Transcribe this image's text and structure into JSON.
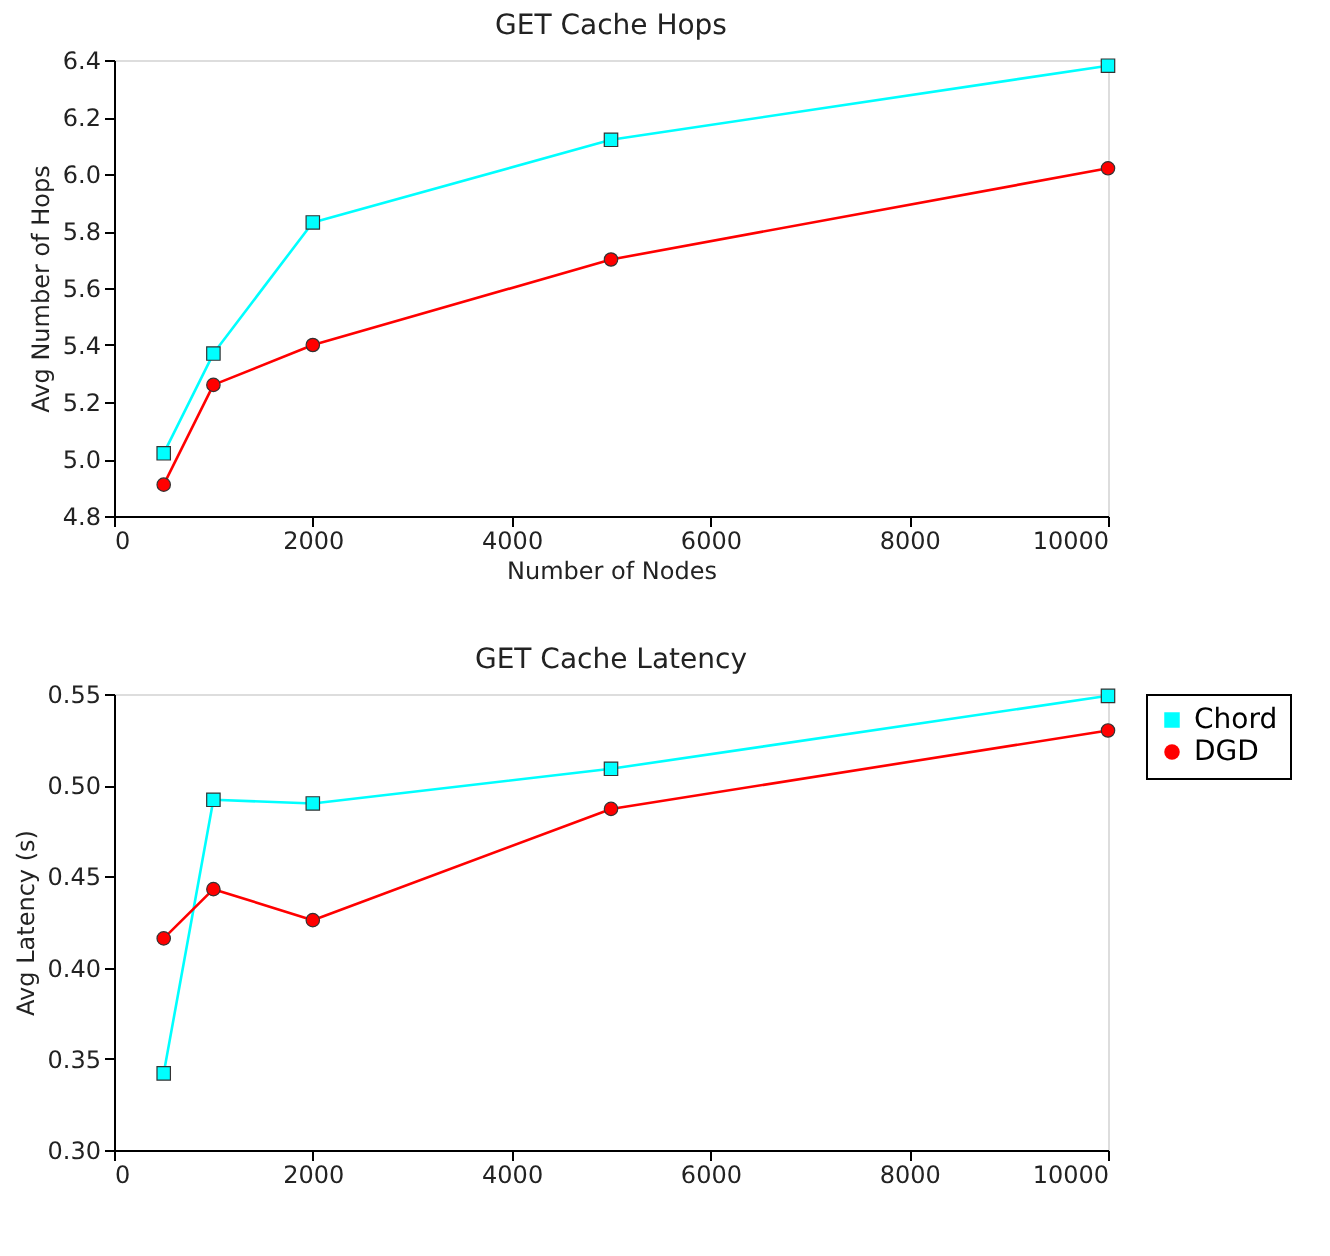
{
  "chart_data": [
    {
      "type": "line",
      "title": "GET Cache Hops",
      "xlabel": "Number of Nodes",
      "ylabel": "Avg Number of Hops",
      "x": [
        500,
        1000,
        2000,
        5000,
        10000
      ],
      "xlim": [
        0,
        10000
      ],
      "xticks": [
        0,
        2000,
        4000,
        6000,
        8000,
        10000
      ],
      "ylim": [
        4.8,
        6.4
      ],
      "yticks": [
        4.8,
        {
          "value": 5.0,
          "label": "5.0"
        },
        5.2,
        5.4,
        5.6,
        5.8,
        {
          "value": 6.0,
          "label": "6.0"
        },
        6.2,
        6.4
      ],
      "grid": false,
      "legend": false,
      "line_style": "solid",
      "series": [
        {
          "color": "#00ffff",
          "marker": "square",
          "values": [
            5.02,
            5.37,
            5.83,
            6.12,
            6.38
          ]
        },
        {
          "color": "#ff0000",
          "marker": "circle",
          "values": [
            4.91,
            5.26,
            5.4,
            5.7,
            6.02
          ]
        }
      ]
    },
    {
      "type": "line",
      "title": "GET Cache Latency",
      "ylabel": "Avg Latency (s)",
      "x": [
        500,
        1000,
        2000,
        5000,
        10000
      ],
      "xlim": [
        0,
        10000
      ],
      "xticks": [
        0,
        2000,
        4000,
        6000,
        8000,
        10000
      ],
      "ylim": [
        0.3,
        0.55
      ],
      "yticks": [
        {
          "value": 0.3,
          "label": "0.30"
        },
        0.35,
        {
          "value": 0.4,
          "label": "0.40"
        },
        0.45,
        {
          "value": 0.5,
          "label": "0.50"
        },
        0.55
      ],
      "grid": false,
      "legend": "right",
      "line_style": "solid",
      "series": [
        {
          "name": "Chord",
          "color": "#00ffff",
          "marker": "square",
          "values": [
            0.342,
            0.492,
            0.49,
            0.509,
            0.549
          ]
        },
        {
          "name": "DGD",
          "color": "#ff0000",
          "marker": "circle",
          "values": [
            0.416,
            0.443,
            0.426,
            0.487,
            0.53
          ]
        }
      ]
    }
  ]
}
